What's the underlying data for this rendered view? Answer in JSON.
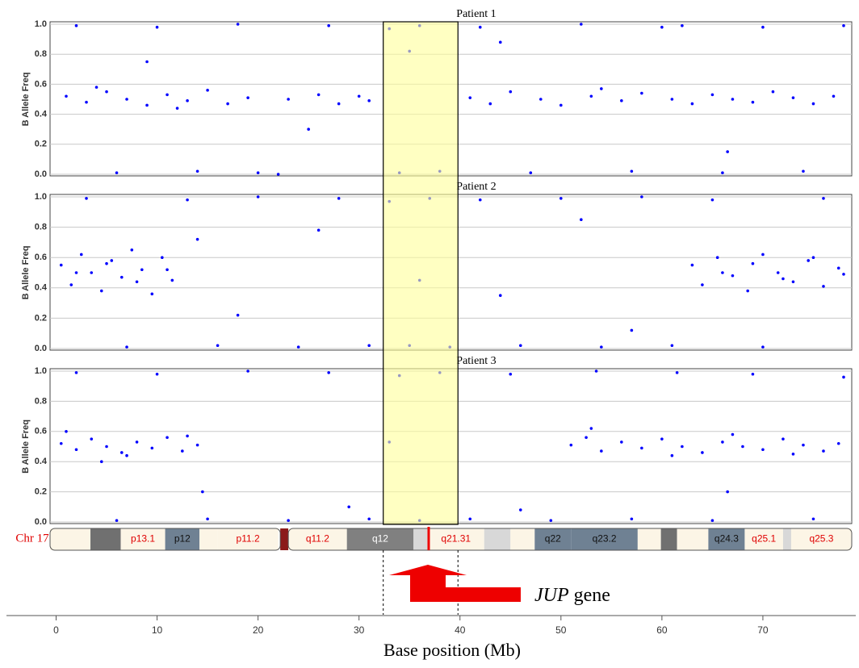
{
  "chart_data": [
    {
      "type": "scatter",
      "title": "Patient 1",
      "ylabel": "B Allele Freq",
      "color": "#0000ff",
      "xlim": [
        -0.6,
        78.8
      ],
      "ylim": [
        0,
        1
      ],
      "yticks": [
        {
          "value": 0,
          "label": "0.0"
        },
        0.2,
        0.4,
        0.6,
        0.8,
        {
          "value": 1,
          "label": "1.0"
        }
      ],
      "grid": true,
      "x": [
        1,
        3,
        5,
        7,
        9,
        11,
        13,
        15,
        17,
        19,
        23,
        26,
        28,
        30,
        31,
        41,
        43,
        45,
        48,
        50,
        53,
        56,
        58,
        61,
        63,
        65,
        67,
        69,
        71,
        73,
        75,
        77,
        2,
        6,
        10,
        14,
        18,
        22,
        27,
        33,
        34,
        36,
        38,
        42,
        47,
        52,
        57,
        62,
        66,
        70,
        74,
        78,
        9,
        25,
        44,
        66.5,
        35,
        4,
        12,
        20,
        54,
        60
      ],
      "values": [
        0.52,
        0.48,
        0.55,
        0.5,
        0.46,
        0.53,
        0.49,
        0.56,
        0.47,
        0.51,
        0.5,
        0.53,
        0.47,
        0.52,
        0.49,
        0.51,
        0.47,
        0.55,
        0.5,
        0.46,
        0.52,
        0.49,
        0.54,
        0.5,
        0.47,
        0.53,
        0.5,
        0.48,
        0.55,
        0.51,
        0.47,
        0.52,
        0.99,
        0.01,
        0.98,
        0.02,
        1,
        0,
        0.99,
        0.97,
        0.01,
        0.99,
        0.02,
        0.98,
        0.01,
        1,
        0.02,
        0.99,
        0.01,
        0.98,
        0.02,
        0.99,
        0.75,
        0.3,
        0.88,
        0.15,
        0.82,
        0.58,
        0.44,
        0.01,
        0.57,
        0.98
      ]
    },
    {
      "type": "scatter",
      "title": "Patient 2",
      "ylabel": "B Allele Freq",
      "color": "#0000ff",
      "xlim": [
        -0.6,
        78.8
      ],
      "ylim": [
        0,
        1
      ],
      "yticks": [
        {
          "value": 0,
          "label": "0.0"
        },
        0.2,
        0.4,
        0.6,
        0.8,
        {
          "value": 1,
          "label": "1.0"
        }
      ],
      "grid": true,
      "x": [
        0.5,
        1.5,
        2.5,
        3.5,
        4.5,
        5.5,
        6.5,
        7.5,
        8.5,
        9.5,
        10.5,
        11.5,
        2,
        5,
        8,
        11,
        63,
        64,
        65.5,
        67,
        68.5,
        70,
        71.5,
        73,
        74.5,
        76,
        77.5,
        66,
        69,
        72,
        75,
        78,
        3,
        7,
        13,
        16,
        20,
        24,
        28,
        31,
        33,
        35,
        37,
        39,
        42,
        46,
        50,
        54,
        58,
        61,
        65,
        70,
        76,
        18,
        26,
        44,
        52,
        57,
        14,
        36
      ],
      "values": [
        0.55,
        0.42,
        0.62,
        0.5,
        0.38,
        0.58,
        0.47,
        0.65,
        0.52,
        0.36,
        0.6,
        0.45,
        0.5,
        0.56,
        0.44,
        0.52,
        0.55,
        0.42,
        0.6,
        0.48,
        0.38,
        0.62,
        0.5,
        0.44,
        0.58,
        0.41,
        0.53,
        0.5,
        0.56,
        0.46,
        0.6,
        0.49,
        0.99,
        0.01,
        0.98,
        0.02,
        1,
        0.01,
        0.99,
        0.02,
        0.97,
        0.02,
        0.99,
        0.01,
        0.98,
        0.02,
        0.99,
        0.01,
        1,
        0.02,
        0.98,
        0.01,
        0.99,
        0.22,
        0.78,
        0.35,
        0.85,
        0.12,
        0.72,
        0.45
      ]
    },
    {
      "type": "scatter",
      "title": "Patient 3",
      "ylabel": "B Allele Freq",
      "color": "#0000ff",
      "xlim": [
        -0.6,
        78.8
      ],
      "ylim": [
        0,
        1
      ],
      "yticks": [
        {
          "value": 0,
          "label": "0.0"
        },
        0.2,
        0.4,
        0.6,
        0.8,
        {
          "value": 1,
          "label": "1.0"
        }
      ],
      "grid": true,
      "x": [
        0.5,
        2,
        3.5,
        5,
        6.5,
        8,
        9.5,
        11,
        12.5,
        14,
        1,
        7,
        13,
        33,
        51,
        52.5,
        54,
        56,
        58,
        60,
        62,
        64,
        66,
        68,
        70,
        72,
        74,
        76,
        77.5,
        53,
        61,
        67,
        73,
        2,
        6,
        10,
        15,
        19,
        23,
        27,
        31,
        34,
        36,
        38,
        41,
        45,
        49,
        53.5,
        57,
        61.5,
        65,
        69,
        75,
        14.5,
        29,
        46,
        66.5,
        78,
        4.5
      ],
      "values": [
        0.52,
        0.48,
        0.55,
        0.5,
        0.46,
        0.53,
        0.49,
        0.56,
        0.47,
        0.51,
        0.6,
        0.44,
        0.57,
        0.53,
        0.51,
        0.56,
        0.47,
        0.53,
        0.49,
        0.55,
        0.5,
        0.46,
        0.53,
        0.5,
        0.48,
        0.55,
        0.51,
        0.47,
        0.52,
        0.62,
        0.44,
        0.58,
        0.45,
        0.99,
        0.01,
        0.98,
        0.02,
        1,
        0.01,
        0.99,
        0.02,
        0.97,
        0.01,
        0.99,
        0.02,
        0.98,
        0.01,
        1,
        0.02,
        0.99,
        0.01,
        0.98,
        0.02,
        0.2,
        0.1,
        0.08,
        0.2,
        0.96,
        0.4
      ]
    }
  ],
  "highlight": [
    32.4,
    39.8
  ],
  "gene_position": 36.9,
  "shared_axis": {
    "xlabel": "Base position (Mb)",
    "xlim": [
      -0.6,
      78.8
    ],
    "xticks": [
      0,
      10,
      20,
      30,
      40,
      50,
      60,
      70
    ]
  },
  "ideogram": {
    "label": "Chr 17",
    "bands": [
      {
        "start": -0.6,
        "end": 3.4,
        "color": "#fcf5e6"
      },
      {
        "start": 3.4,
        "end": 6.4,
        "color": "#707070"
      },
      {
        "start": 6.4,
        "end": 10.8,
        "color": "#fcf5e6",
        "label": "p13.1",
        "text_color": "#e00000"
      },
      {
        "start": 10.8,
        "end": 14.2,
        "color": "#6f8193",
        "label": "p12",
        "text_color": "#111111"
      },
      {
        "start": 14.2,
        "end": 16,
        "color": "#fcf5e6"
      },
      {
        "start": 16,
        "end": 22,
        "color": "#fcf5e6",
        "label": "p11.2",
        "text_color": "#e00000"
      },
      {
        "start": 22.2,
        "end": 23,
        "color": "#8b1a1a"
      },
      {
        "start": 23,
        "end": 28.8,
        "color": "#fcf5e6",
        "label": "q11.2",
        "text_color": "#e00000"
      },
      {
        "start": 28.8,
        "end": 35.4,
        "color": "#808080",
        "label": "q12",
        "text_color": "#ffffff"
      },
      {
        "start": 35.4,
        "end": 36.8,
        "color": "#d8d8d8"
      },
      {
        "start": 36.8,
        "end": 42.4,
        "color": "#fcf5e6",
        "label": "q21.31",
        "text_color": "#e00000"
      },
      {
        "start": 42.4,
        "end": 45,
        "color": "#d8d8d8"
      },
      {
        "start": 45,
        "end": 47.4,
        "color": "#fcf5e6"
      },
      {
        "start": 47.4,
        "end": 51,
        "color": "#6f8193",
        "label": "q22",
        "text_color": "#111111"
      },
      {
        "start": 51,
        "end": 57.6,
        "color": "#6f8193",
        "label": "q23.2",
        "text_color": "#111111"
      },
      {
        "start": 57.6,
        "end": 59.9,
        "color": "#fcf5e6"
      },
      {
        "start": 59.9,
        "end": 61.5,
        "color": "#707070"
      },
      {
        "start": 61.5,
        "end": 64.6,
        "color": "#fcf5e6"
      },
      {
        "start": 64.6,
        "end": 68.2,
        "color": "#6f8193",
        "label": "q24.3",
        "text_color": "#111111"
      },
      {
        "start": 68.2,
        "end": 72,
        "color": "#fcf5e6",
        "label": "q25.1",
        "text_color": "#e00000"
      },
      {
        "start": 72,
        "end": 72.8,
        "color": "#d8d8d8"
      },
      {
        "start": 72.8,
        "end": 78.8,
        "color": "#fcf5e6",
        "label": "q25.3",
        "text_color": "#e00000"
      }
    ]
  },
  "annotation": {
    "gene": "JUP",
    "suffix": "gene"
  }
}
